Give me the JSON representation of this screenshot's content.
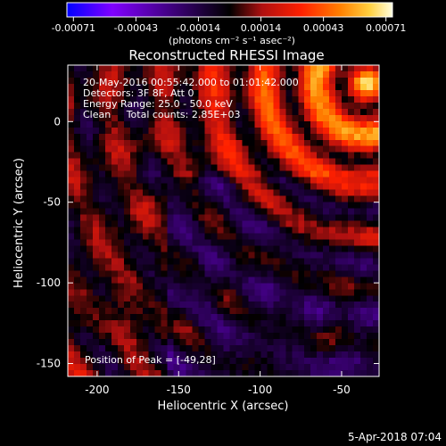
{
  "chart_data": {
    "type": "heatmap",
    "title": "Reconstructed RHESSI Image",
    "xlabel": "Heliocentric X (arcsec)",
    "ylabel": "Heliocentric Y (arcsec)",
    "xlim": [
      -218,
      -27
    ],
    "ylim": [
      -158,
      35
    ],
    "x_ticks": [
      -200,
      -150,
      -100,
      -50
    ],
    "y_ticks": [
      0,
      -50,
      -100,
      -150
    ],
    "colorbar": {
      "ticks": [
        "-0.00071",
        "-0.00043",
        "-0.00014",
        "0.00014",
        "0.00043",
        "0.00071"
      ],
      "units_line": "(photons cm⁻² s⁻¹ asec⁻²)",
      "colors": [
        "#0000ff",
        "#8000ff",
        "#000000",
        "#b01010",
        "#ff2000",
        "#ff8000",
        "#ffd040",
        "#ffffe0"
      ]
    },
    "annotations": [
      "20-May-2016 00:55:42.000 to 01:01:42.000",
      "Detectors: 3F 8F, Att 0",
      "Energy Range: 25.0 - 50.0 keV",
      "Clean     Total counts: 2.85E+03"
    ],
    "peak_label": "Position of Peak = [-49,28]",
    "grid": false
  },
  "footer_timestamp": "5-Apr-2018 07:04"
}
